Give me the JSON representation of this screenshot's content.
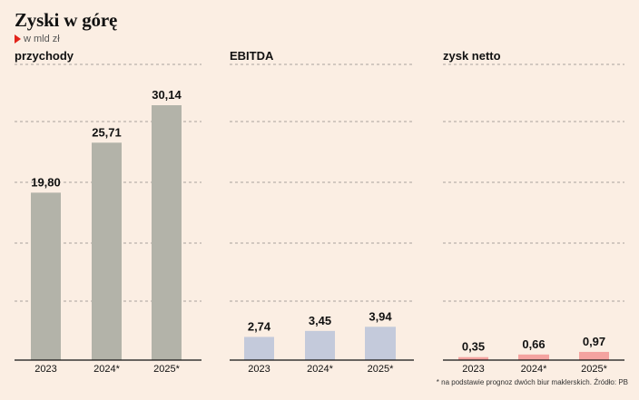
{
  "title": "Zyski w górę",
  "subtitle": "w mld zł",
  "footnote": "* na podstawie prognoz dwóch biur maklerskich. Źródło: PB",
  "chart_data": [
    {
      "type": "bar",
      "panel_title": "przychody",
      "categories": [
        "2023",
        "2024*",
        "2025*"
      ],
      "values": [
        19.8,
        25.71,
        30.14
      ],
      "value_labels": [
        "19,80",
        "25,71",
        "30,14"
      ],
      "color": "#b3b3a9",
      "ylim": [
        0,
        32
      ],
      "grid": true
    },
    {
      "type": "bar",
      "panel_title": "EBITDA",
      "categories": [
        "2023",
        "2024*",
        "2025*"
      ],
      "values": [
        2.74,
        3.45,
        3.94
      ],
      "value_labels": [
        "2,74",
        "3,45",
        "3,94"
      ],
      "color": "#c4cadb",
      "ylim": [
        0,
        32
      ],
      "grid": true
    },
    {
      "type": "bar",
      "panel_title": "zysk netto",
      "categories": [
        "2023",
        "2024*",
        "2025*"
      ],
      "values": [
        0.35,
        0.66,
        0.97
      ],
      "value_labels": [
        "0,35",
        "0,66",
        "0,97"
      ],
      "color": "#f4a3a0",
      "ylim": [
        0,
        32
      ],
      "grid": true
    }
  ]
}
